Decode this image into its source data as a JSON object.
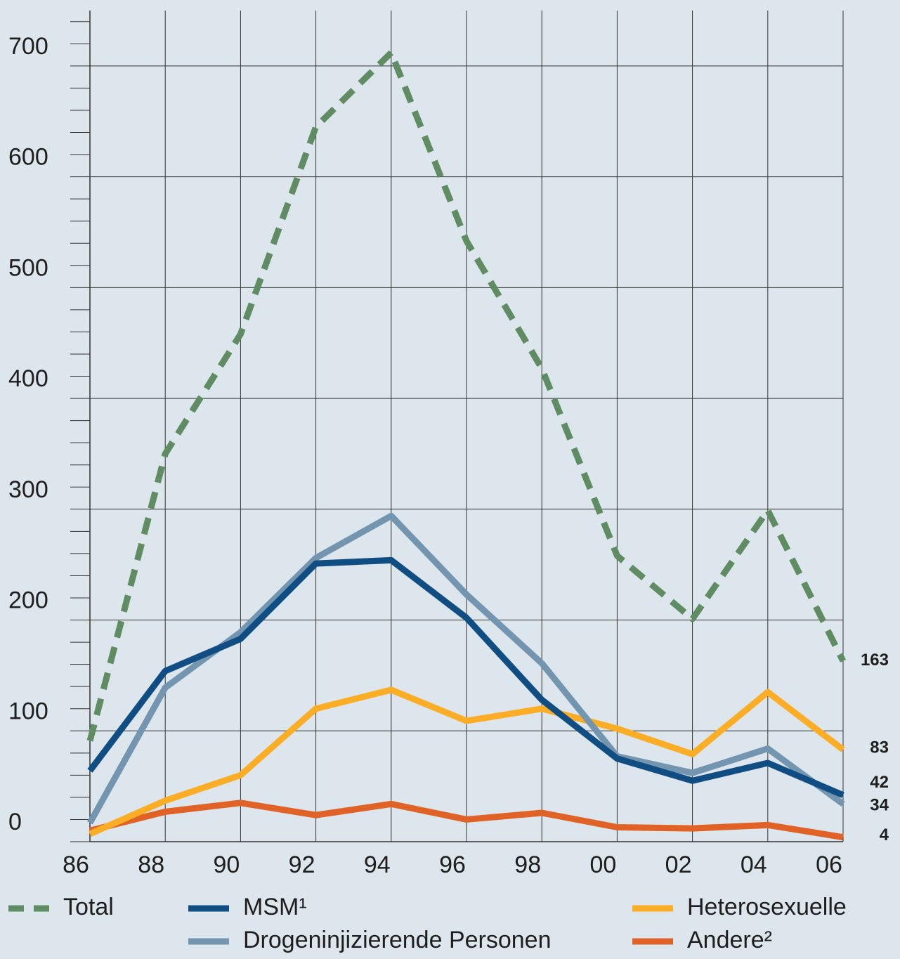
{
  "chart_data": {
    "type": "line",
    "categories": [
      "86",
      "88",
      "90",
      "92",
      "94",
      "96",
      "98",
      "00",
      "02",
      "04",
      "06"
    ],
    "series": [
      {
        "name": "Total",
        "color": "#5f8c62",
        "dashed": true,
        "values": [
          91,
          350,
          458,
          645,
          712,
          542,
          427,
          258,
          201,
          299,
          163
        ]
      },
      {
        "name": "MSM¹",
        "color": "#0f4d82",
        "values": [
          64,
          154,
          183,
          251,
          254,
          202,
          128,
          75,
          55,
          71,
          42
        ]
      },
      {
        "name": "Drogeninjizierende Personen",
        "color": "#7395b0",
        "values": [
          17,
          139,
          189,
          256,
          294,
          223,
          161,
          77,
          62,
          84,
          34
        ]
      },
      {
        "name": "Heterosexuelle",
        "color": "#fbae25",
        "values": [
          7,
          37,
          60,
          120,
          137,
          109,
          120,
          102,
          79,
          135,
          83
        ]
      },
      {
        "name": "Andere²",
        "color": "#e06226",
        "values": [
          10,
          27,
          35,
          24,
          34,
          20,
          26,
          13,
          12,
          15,
          4
        ]
      }
    ],
    "ylim": [
      0,
      750
    ],
    "yticks": [
      0,
      100,
      200,
      300,
      400,
      500,
      600,
      700
    ],
    "yminorticks": [
      20,
      40,
      60,
      80,
      120,
      140,
      160,
      180,
      220,
      240,
      260,
      280,
      320,
      340,
      360,
      380,
      420,
      440,
      460,
      480,
      520,
      540,
      560,
      580,
      620,
      640,
      660,
      680,
      720,
      740
    ],
    "grid": true
  }
}
